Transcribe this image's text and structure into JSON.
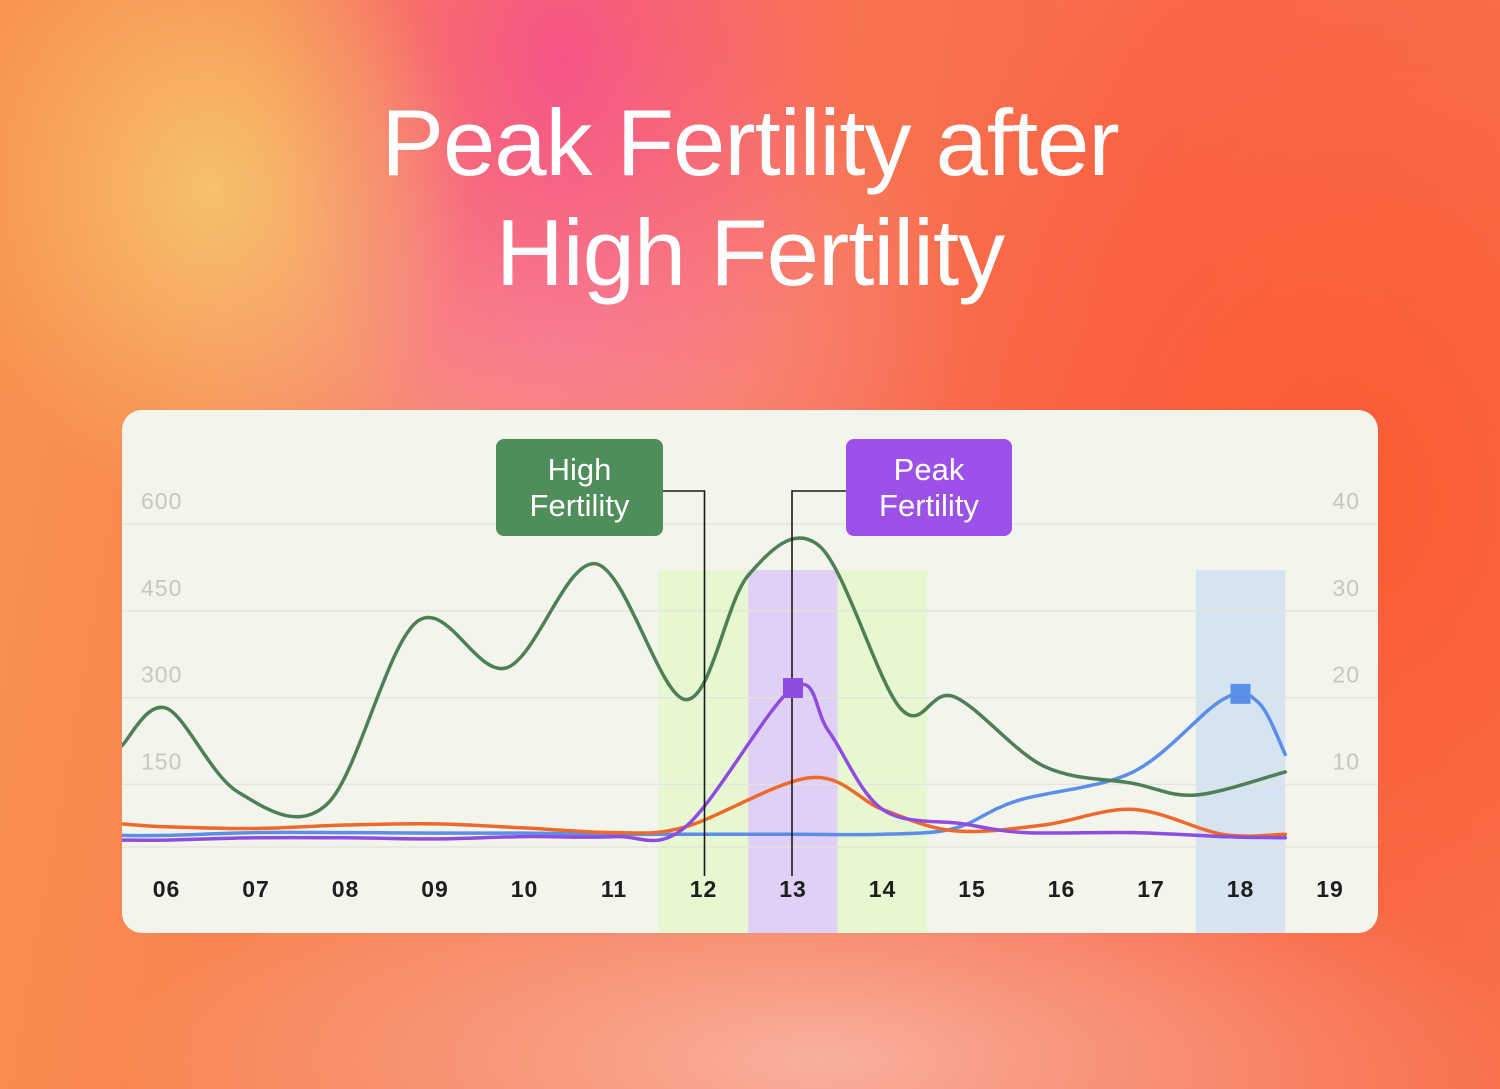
{
  "title": {
    "line1": "Peak Fertility after",
    "line2": "High Fertility"
  },
  "callouts": {
    "high": {
      "line1": "High",
      "line2": "Fertility",
      "color": "#4f8d5a"
    },
    "peak": {
      "line1": "Peak",
      "line2": "Fertility",
      "color": "#9b51e8"
    }
  },
  "chart_data": {
    "type": "line",
    "title": "Peak Fertility after High Fertility",
    "categories": [
      "06",
      "07",
      "08",
      "09",
      "10",
      "11",
      "12",
      "13",
      "14",
      "15",
      "16",
      "17",
      "18",
      "19"
    ],
    "y_left": {
      "ticks": [
        150,
        300,
        450,
        600
      ],
      "ylim": [
        0,
        600
      ]
    },
    "y_right": {
      "ticks": [
        10,
        20,
        30,
        40
      ],
      "ylim": [
        0,
        40
      ]
    },
    "grid": true,
    "highlight_bands": [
      {
        "category": "12",
        "color": "#e6f7d2"
      },
      {
        "category": "13",
        "color": "#e0d0f6"
      },
      {
        "category": "14",
        "color": "#e6f7d2"
      },
      {
        "category": "18",
        "color": "#d6e4f2"
      }
    ],
    "series": [
      {
        "axis": "left",
        "color": "#4e7f57",
        "x": [
          5.5,
          6,
          6.8,
          7.8,
          8.8,
          9.8,
          10.8,
          11.8,
          12.5,
          13.3,
          14.2,
          14.8,
          15.8,
          16.8,
          17.5,
          18.5
        ],
        "values": [
          175,
          240,
          95,
          75,
          390,
          310,
          490,
          255,
          470,
          520,
          240,
          260,
          140,
          110,
          90,
          130
        ]
      },
      {
        "axis": "left",
        "color": "#8f4de0",
        "x": [
          5.5,
          6,
          7,
          8,
          9,
          10,
          11,
          11.8,
          13,
          13.4,
          14,
          14.9,
          15.6,
          16.8,
          17.8,
          18.5
        ],
        "values": [
          12,
          12,
          16,
          16,
          14,
          18,
          18,
          35,
          275,
          200,
          65,
          40,
          25,
          25,
          18,
          16
        ]
      },
      {
        "axis": "left",
        "color": "#ee6a2a",
        "x": [
          5.5,
          6,
          7,
          8,
          9,
          10,
          11,
          11.8,
          13.2,
          14,
          14.8,
          15.8,
          16.8,
          17.8,
          18.5
        ],
        "values": [
          40,
          35,
          32,
          38,
          40,
          33,
          25,
          35,
          120,
          65,
          28,
          38,
          65,
          22,
          22
        ]
      },
      {
        "axis": "left",
        "color": "#5a8ee8",
        "x": [
          5.5,
          6,
          7,
          8,
          9,
          10,
          11,
          11.8,
          13,
          14,
          14.8,
          15.5,
          16.8,
          17.8,
          18.2,
          18.5
        ],
        "values": [
          20,
          20,
          25,
          25,
          24,
          24,
          22,
          22,
          22,
          22,
          32,
          80,
          130,
          255,
          250,
          160
        ]
      }
    ],
    "markers": [
      {
        "category": "13",
        "value": 275,
        "color": "#8f4de0"
      },
      {
        "category": "18",
        "value": 265,
        "color": "#5a8ee8"
      }
    ]
  }
}
